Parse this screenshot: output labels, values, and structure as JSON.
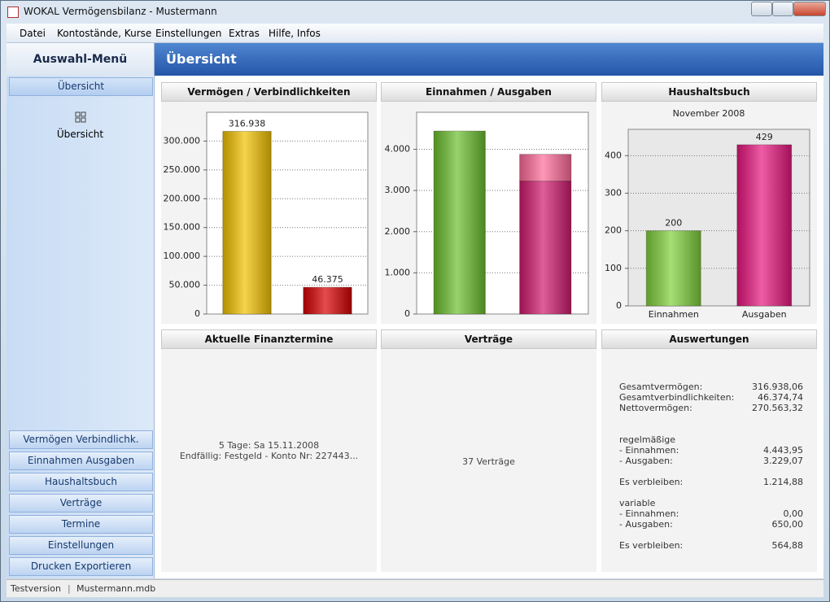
{
  "window": {
    "title": "WOKAL Vermögensbilanz - Mustermann"
  },
  "menu": [
    "Datei",
    "Kontostände, Kurse",
    "Einstellungen",
    "Extras",
    "Hilfe, Infos"
  ],
  "sidebar": {
    "title": "Auswahl-Menü",
    "active": "Übersicht",
    "icon_label": "Übersicht",
    "buttons": [
      "Vermögen Verbindlichk.",
      "Einnahmen Ausgaben",
      "Haushaltsbuch",
      "Verträge",
      "Termine",
      "Einstellungen",
      "Drucken  Exportieren"
    ]
  },
  "header": "Übersicht",
  "chart_data": [
    {
      "type": "bar",
      "title": "Vermögen / Verbindlichkeiten",
      "categories": [
        null,
        null
      ],
      "values": [
        316938,
        46375
      ],
      "value_labels": [
        "316.938",
        "46.375"
      ],
      "colors": [
        "#f2c200",
        "#d80000"
      ],
      "ylim": [
        0,
        350000
      ],
      "yticks": [
        0,
        {
          "value": 50000,
          "label": "50.000"
        },
        {
          "value": 100000,
          "label": "100.000"
        },
        {
          "value": 150000,
          "label": "150.000"
        },
        {
          "value": 200000,
          "label": "200.000"
        },
        {
          "value": 250000,
          "label": "250.000"
        },
        {
          "value": 300000,
          "label": "300.000"
        }
      ],
      "grid": true
    },
    {
      "type": "stacked-bar",
      "title": "Einnahmen / Ausgaben",
      "categories": [
        null,
        null
      ],
      "series": [
        {
          "values": [
            4444,
            3229
          ],
          "colors": [
            "#6cbf2e",
            "#d01a6e"
          ]
        },
        {
          "values": [
            0,
            650
          ],
          "colors": [
            "#6cbf2e",
            "#ff6b9a"
          ]
        }
      ],
      "ylim": [
        0,
        4900
      ],
      "yticks": [
        0,
        {
          "value": 1000,
          "label": "1.000"
        },
        {
          "value": 2000,
          "label": "2.000"
        },
        {
          "value": 3000,
          "label": "3.000"
        },
        {
          "value": 4000,
          "label": "4.000"
        }
      ],
      "grid": true
    },
    {
      "type": "bar",
      "title": "Haushaltsbuch",
      "subtitle": "November 2008",
      "categories": [
        "Einnahmen",
        "Ausgaben"
      ],
      "values": [
        200,
        429
      ],
      "colors": [
        "#7fd13b",
        "#e8177f"
      ],
      "ylim": [
        0,
        470
      ],
      "yticks": [
        0,
        100,
        200,
        300,
        400
      ],
      "grid": true
    }
  ],
  "panels": {
    "termine": {
      "title": "Aktuelle Finanztermine",
      "lines": [
        "5 Tage:  Sa  15.11.2008",
        "Endfällig:  Festgeld - Konto Nr: 227443..."
      ]
    },
    "vertraege": {
      "title": "Verträge",
      "text": "37 Verträge"
    },
    "auswertungen": {
      "title": "Auswertungen",
      "groups": [
        {
          "rows": [
            [
              "Gesamtvermögen:",
              "316.938,06"
            ],
            [
              "Gesamtverbindlichkeiten:",
              "46.374,74"
            ],
            [
              "Nettovermögen:",
              "270.563,32"
            ]
          ]
        },
        {
          "heading": "regelmäßige",
          "rows": [
            [
              "- Einnahmen:",
              "4.443,95"
            ],
            [
              "- Ausgaben:",
              "3.229,07"
            ]
          ]
        },
        {
          "rows": [
            [
              "Es verbleiben:",
              "1.214,88"
            ]
          ]
        },
        {
          "heading": "variable",
          "rows": [
            [
              "- Einnahmen:",
              "0,00"
            ],
            [
              "- Ausgaben:",
              "650,00"
            ]
          ]
        },
        {
          "rows": [
            [
              "Es verbleiben:",
              "564,88"
            ]
          ]
        }
      ]
    }
  },
  "status": [
    "Testversion",
    "Mustermann.mdb"
  ]
}
